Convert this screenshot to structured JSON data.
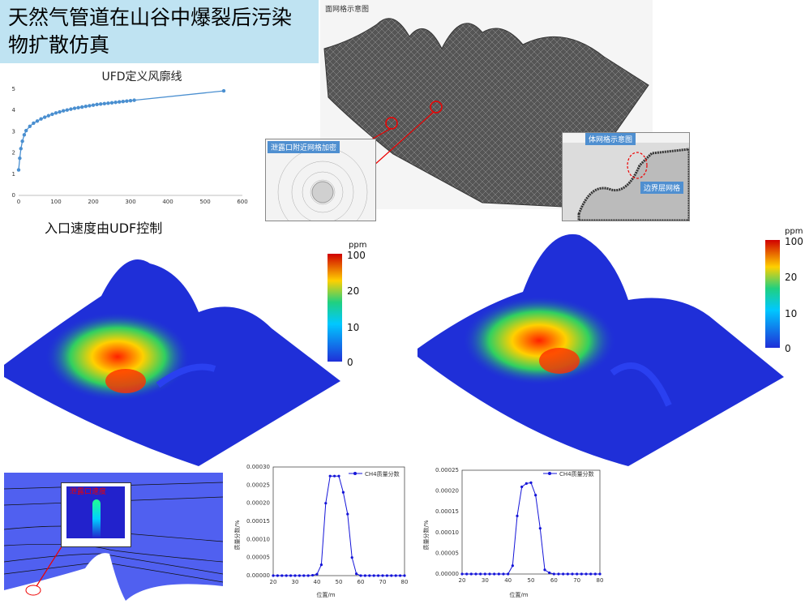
{
  "slide_title": "天然气管道在山谷中爆裂后污染物扩散仿真",
  "udf_chart": {
    "title": "UFD定义风廓线",
    "x_ticks": [
      "0",
      "100",
      "200",
      "300",
      "400",
      "500",
      "600"
    ],
    "y_ticks": [
      "0",
      "1",
      "2",
      "3",
      "4",
      "5"
    ],
    "caption": "入口速度由UDF控制"
  },
  "chart_data": [
    {
      "type": "line",
      "title": "UFD定义风廓线",
      "xlim": [
        0,
        600
      ],
      "ylim": [
        0,
        5
      ],
      "x": [
        0,
        3,
        6,
        10,
        15,
        20,
        30,
        40,
        50,
        60,
        70,
        80,
        90,
        100,
        110,
        120,
        130,
        140,
        150,
        160,
        170,
        180,
        190,
        200,
        210,
        220,
        230,
        240,
        250,
        260,
        270,
        280,
        290,
        300,
        310,
        550
      ],
      "y": [
        1.2,
        1.75,
        2.2,
        2.55,
        2.85,
        3.05,
        3.25,
        3.4,
        3.5,
        3.6,
        3.68,
        3.75,
        3.82,
        3.88,
        3.93,
        3.98,
        4.02,
        4.06,
        4.1,
        4.13,
        4.16,
        4.19,
        4.22,
        4.25,
        4.28,
        4.3,
        4.32,
        4.34,
        4.36,
        4.38,
        4.4,
        4.42,
        4.44,
        4.46,
        4.48,
        4.92
      ],
      "grid": false
    },
    {
      "type": "line",
      "xlabel": "位置/m",
      "ylabel": "质量分数/%",
      "legend": "CH4质量分数",
      "xlim": [
        20,
        80
      ],
      "ylim": [
        0,
        0.0003
      ],
      "y_ticks": [
        "0.00000",
        "0.00005",
        "0.00010",
        "0.00015",
        "0.00020",
        "0.00025",
        "0.00030"
      ],
      "x_ticks": [
        "20",
        "30",
        "40",
        "50",
        "60",
        "70",
        "80"
      ],
      "x": [
        20,
        22,
        24,
        26,
        28,
        30,
        32,
        34,
        36,
        38,
        40,
        42,
        44,
        46,
        48,
        50,
        52,
        54,
        56,
        58,
        60,
        62,
        64,
        66,
        68,
        70,
        72,
        74,
        76,
        78,
        80
      ],
      "y": [
        0,
        0,
        0,
        0,
        0,
        0,
        0,
        0,
        0,
        1e-06,
        4e-06,
        3e-05,
        0.0002,
        0.000275,
        0.000275,
        0.000275,
        0.00023,
        0.00017,
        5e-05,
        5e-06,
        0,
        0,
        0,
        0,
        0,
        0,
        0,
        0,
        0,
        0,
        0
      ]
    },
    {
      "type": "line",
      "xlabel": "位置/m",
      "ylabel": "质量分数/%",
      "legend": "CH4质量分数",
      "xlim": [
        20,
        80
      ],
      "ylim": [
        0,
        0.00025
      ],
      "y_ticks": [
        "0.00000",
        "0.00005",
        "0.00010",
        "0.00015",
        "0.00020",
        "0.00025"
      ],
      "x_ticks": [
        "20",
        "30",
        "40",
        "50",
        "60",
        "70",
        "80"
      ],
      "x": [
        20,
        22,
        24,
        26,
        28,
        30,
        32,
        34,
        36,
        38,
        40,
        42,
        44,
        46,
        48,
        50,
        52,
        54,
        56,
        58,
        60,
        62,
        64,
        66,
        68,
        70,
        72,
        74,
        76,
        78,
        80
      ],
      "y": [
        0,
        0,
        0,
        0,
        0,
        0,
        0,
        0,
        0,
        0,
        0,
        2e-05,
        0.00014,
        0.00021,
        0.000218,
        0.00022,
        0.00019,
        0.00011,
        1e-05,
        3e-06,
        0,
        0,
        0,
        0,
        0,
        0,
        0,
        0,
        0,
        0,
        0
      ]
    }
  ],
  "mesh": {
    "surface_label": "面网格示意图",
    "leak_label": "泄露口附近网格加密",
    "volume_label": "体网格示意图",
    "boundary_label": "边界层网格"
  },
  "contour": {
    "unit": "ppm",
    "left_ticks": [
      "100",
      "20",
      "10",
      "0"
    ],
    "right_ticks": [
      "100",
      "20",
      "10",
      "0"
    ]
  },
  "inset_label": "泄露口速度",
  "colors": {
    "title_bg": "#bfe3f2",
    "terrain_blue": "#1f2fd8",
    "line_blue": "#4a8fd0",
    "point_blue": "#1414d8"
  }
}
